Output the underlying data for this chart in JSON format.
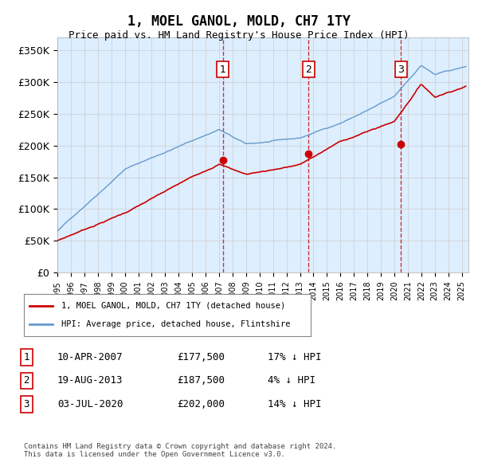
{
  "title": "1, MOEL GANOL, MOLD, CH7 1TY",
  "subtitle": "Price paid vs. HM Land Registry's House Price Index (HPI)",
  "ylabel_ticks": [
    "£0",
    "£50K",
    "£100K",
    "£150K",
    "£200K",
    "£250K",
    "£300K",
    "£350K"
  ],
  "ytick_values": [
    0,
    50000,
    100000,
    150000,
    200000,
    250000,
    300000,
    350000
  ],
  "ylim": [
    0,
    370000
  ],
  "xlim_start": 1995.0,
  "xlim_end": 2025.5,
  "sale_dates": [
    2007.274,
    2013.635,
    2020.503
  ],
  "sale_prices": [
    177500,
    187500,
    202000
  ],
  "sale_labels": [
    "1",
    "2",
    "3"
  ],
  "legend_entry1": "1, MOEL GANOL, MOLD, CH7 1TY (detached house)",
  "legend_entry2": "HPI: Average price, detached house, Flintshire",
  "table_rows": [
    [
      "1",
      "10-APR-2007",
      "£177,500",
      "17% ↓ HPI"
    ],
    [
      "2",
      "19-AUG-2013",
      "£187,500",
      "4% ↓ HPI"
    ],
    [
      "3",
      "03-JUL-2020",
      "£202,000",
      "14% ↓ HPI"
    ]
  ],
  "footer": "Contains HM Land Registry data © Crown copyright and database right 2024.\nThis data is licensed under the Open Government Licence v3.0.",
  "hpi_color": "#6699cc",
  "price_color": "#cc0000",
  "sale_dot_color": "#cc0000",
  "background_color": "#ddeeff",
  "grid_color": "#cccccc",
  "vline_color": "#cc0000"
}
